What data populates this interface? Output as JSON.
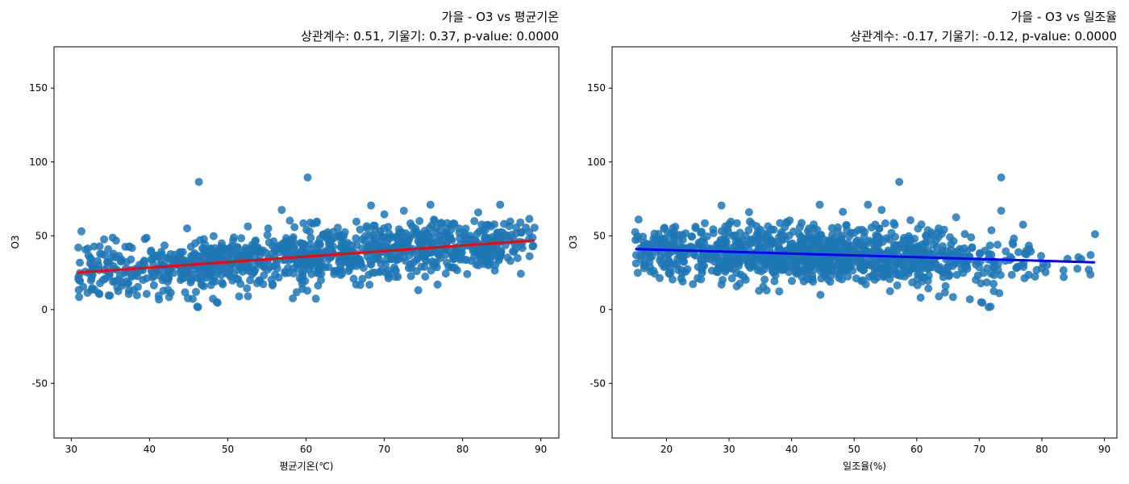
{
  "chart_data": [
    {
      "type": "scatter",
      "title_line1": "가을 - O3 vs 평균기온",
      "title_line2": "상관계수: 0.51, 기울기: 0.37, p-value: 0.0000",
      "xlabel": "평균기온(℃)",
      "ylabel": "O3",
      "xlim": [
        27.8,
        92.3
      ],
      "ylim": [
        -87,
        178
      ],
      "xticks": [
        30,
        40,
        50,
        60,
        70,
        80,
        90
      ],
      "yticks": [
        -50,
        0,
        50,
        100,
        150
      ],
      "point_color": "#1f77b4",
      "trend": {
        "color": "#ff0000",
        "x0": 30.8,
        "y0": 25.0,
        "x1": 89.2,
        "y1": 46.8
      },
      "x_range": [
        30.8,
        89.2
      ],
      "point_count": 1100,
      "points": [
        [
          46.3,
          86.5
        ],
        [
          60.2,
          89.5
        ],
        [
          46.1,
          2
        ],
        [
          46.2,
          1.6
        ],
        [
          48.6,
          5
        ],
        [
          48.7,
          4.7
        ],
        [
          58.8,
          11.8
        ],
        [
          31.0,
          8.5
        ],
        [
          31.3,
          53
        ],
        [
          56.9,
          67.5
        ],
        [
          68.3,
          70.5
        ],
        [
          75.9,
          71
        ],
        [
          84.8,
          71
        ],
        [
          72.5,
          67
        ],
        [
          82.0,
          65.8
        ],
        [
          74.5,
          60
        ],
        [
          70.0,
          64.5
        ],
        [
          41.2,
          6.8
        ],
        [
          42.5,
          8.5
        ],
        [
          34.2,
          47.5
        ],
        [
          35.3,
          48.7
        ],
        [
          30.9,
          42
        ],
        [
          89.2,
          55.5
        ],
        [
          87.5,
          52
        ],
        [
          85.3,
          58
        ],
        [
          44.8,
          55
        ],
        [
          76.8,
          17
        ],
        [
          66.4,
          17
        ],
        [
          61.9,
          20
        ],
        [
          33.6,
          10.5
        ],
        [
          36.0,
          12.5
        ]
      ]
    },
    {
      "type": "scatter",
      "title_line1": "가을 - O3 vs 일조율",
      "title_line2": "상관계수: -0.17, 기울기: -0.12, p-value: 0.0000",
      "xlabel": "일조율(%)",
      "ylabel": "O3",
      "xlim": [
        11.3,
        92.0
      ],
      "ylim": [
        -87,
        178
      ],
      "xticks": [
        20,
        30,
        40,
        50,
        60,
        70,
        80,
        90
      ],
      "yticks": [
        -50,
        0,
        50,
        100,
        150
      ],
      "point_color": "#1f77b4",
      "trend": {
        "color": "#0000ff",
        "x0": 15.0,
        "y0": 41.0,
        "x1": 88.5,
        "y1": 32.0
      },
      "x_range": [
        15.0,
        88.5
      ],
      "point_count": 1100,
      "points": [
        [
          57.2,
          86.5
        ],
        [
          73.5,
          89.5
        ],
        [
          71.8,
          2
        ],
        [
          71.5,
          1.6
        ],
        [
          70.3,
          5
        ],
        [
          70.5,
          4.7
        ],
        [
          15.0,
          52.5
        ],
        [
          88.5,
          51
        ],
        [
          28.8,
          70.5
        ],
        [
          44.5,
          71
        ],
        [
          52.2,
          71
        ],
        [
          33.2,
          66
        ],
        [
          73.5,
          67
        ],
        [
          48.2,
          66.2
        ],
        [
          66.3,
          62.5
        ],
        [
          44.6,
          10
        ],
        [
          68.5,
          7
        ],
        [
          65.8,
          8.5
        ],
        [
          28.8,
          17
        ],
        [
          25.5,
          20.5
        ],
        [
          87.5,
          27
        ],
        [
          83.5,
          22
        ],
        [
          19.8,
          32
        ],
        [
          18.3,
          45.5
        ],
        [
          19.5,
          48
        ],
        [
          77.0,
          57.5
        ],
        [
          54.4,
          67.5
        ],
        [
          59.0,
          60.5
        ],
        [
          87.8,
          37
        ]
      ]
    }
  ]
}
